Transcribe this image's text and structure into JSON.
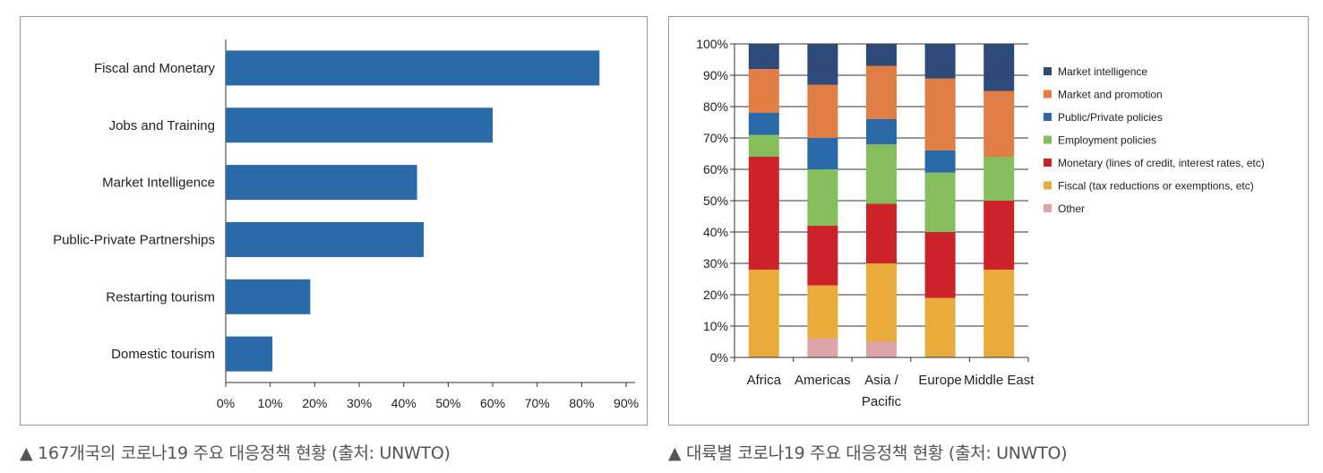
{
  "chart_data": [
    {
      "type": "bar",
      "orientation": "horizontal",
      "categories": [
        "Fiscal and Monetary",
        "Jobs and Training",
        "Market Intelligence",
        "Public-Private Partnerships",
        "Restarting tourism",
        "Domestic tourism"
      ],
      "values": [
        84,
        60,
        43,
        44.5,
        19,
        10.5
      ],
      "xticks": [
        "0%",
        "10%",
        "20%",
        "30%",
        "40%",
        "50%",
        "60%",
        "70%",
        "80%",
        "90%"
      ],
      "xlim": [
        0,
        92
      ],
      "color": "#2a6aa8",
      "grid": false,
      "caption": "▲ 167개국의 코로나19 주요 대응정책 현황 (출처: UNWTO)"
    },
    {
      "type": "bar",
      "stacked": true,
      "categories": [
        "Africa",
        "Americas",
        "Asia / Pacific",
        "Europe",
        "Middle East"
      ],
      "yticks": [
        "0%",
        "10%",
        "20%",
        "30%",
        "40%",
        "50%",
        "60%",
        "70%",
        "80%",
        "90%",
        "100%"
      ],
      "ylim": [
        0,
        100
      ],
      "grid": true,
      "legend_position": "right",
      "series": [
        {
          "name": "Other",
          "color": "#dda5aa",
          "values": [
            0,
            6,
            5,
            0,
            0
          ]
        },
        {
          "name": "Fiscal (tax reductions or exemptions, etc)",
          "color": "#e9ac3c",
          "values": [
            28,
            17,
            25,
            19,
            28
          ]
        },
        {
          "name": "Monetary (lines of credit, interest rates, etc)",
          "color": "#cc2229",
          "values": [
            36,
            19,
            19,
            21,
            22
          ]
        },
        {
          "name": "Employment policies",
          "color": "#86bd5d",
          "values": [
            7,
            18,
            19,
            19,
            14
          ]
        },
        {
          "name": "Public/Private policies",
          "color": "#2a6aa8",
          "values": [
            7,
            10,
            8,
            7,
            0
          ]
        },
        {
          "name": "Market and promotion",
          "color": "#e07e45",
          "values": [
            14,
            17,
            17,
            23,
            21
          ]
        },
        {
          "name": "Market intelligence",
          "color": "#2d4a78",
          "values": [
            8,
            13,
            7,
            11,
            15
          ]
        }
      ],
      "legend_order": [
        "Market intelligence",
        "Market and promotion",
        "Public/Private policies",
        "Employment policies",
        "Monetary (lines of credit, interest rates, etc)",
        "Fiscal (tax reductions or exemptions, etc)",
        "Other"
      ],
      "caption": "▲ 대륙별 코로나19 주요 대응정책 현황 (출처: UNWTO)"
    }
  ]
}
